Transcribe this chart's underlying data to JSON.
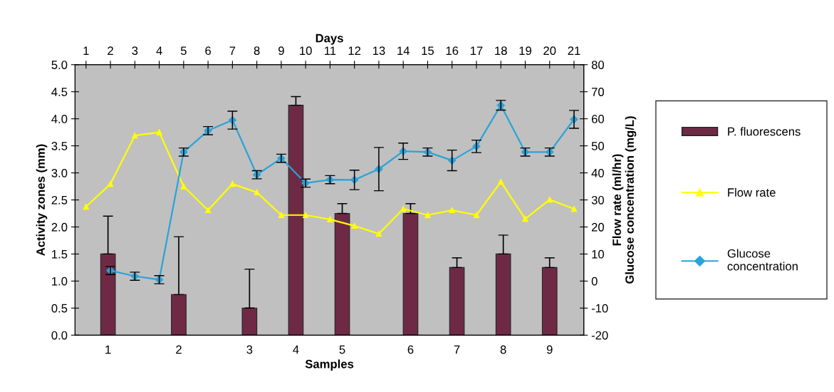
{
  "chart_data": {
    "type": "bar",
    "xlabel": "Days",
    "ylabel": "Activity zones (mm)",
    "y2label": "Flow rate (ml/hr)\nGlucose concentration (mg/L)",
    "xlim": [
      0.55,
      21.4
    ],
    "xticks": [
      1,
      2,
      3,
      4,
      5,
      6,
      7,
      8,
      9,
      10,
      11,
      12,
      13,
      14,
      15,
      16,
      17,
      18,
      19,
      20,
      21
    ],
    "ylim": [
      0,
      5
    ],
    "yticks": [
      {
        "value": 0,
        "label": "0.0"
      },
      {
        "value": 0.5,
        "label": "0.5"
      },
      {
        "value": 1,
        "label": "1.0"
      },
      {
        "value": 1.5,
        "label": "1.5"
      },
      {
        "value": 2,
        "label": "2.0"
      },
      {
        "value": 2.5,
        "label": "2.5"
      },
      {
        "value": 3,
        "label": "3.0"
      },
      {
        "value": 3.5,
        "label": "3.5"
      },
      {
        "value": 4,
        "label": "4.0"
      },
      {
        "value": 4.5,
        "label": "4.5"
      },
      {
        "value": 5,
        "label": "5.0"
      }
    ],
    "y2lim": [
      -20,
      80
    ],
    "y2ticks": [
      -20,
      -10,
      0,
      10,
      20,
      30,
      40,
      50,
      60,
      70,
      80
    ],
    "grid": false,
    "legend": "right",
    "annotations": [
      {
        "text": "1",
        "x": 1.9,
        "y": 0
      },
      {
        "text": "2",
        "x": 4.8,
        "y": 0
      },
      {
        "text": "3",
        "x": 7.7,
        "y": 0
      },
      {
        "text": "4",
        "x": 9.6,
        "y": 0
      },
      {
        "text": "5",
        "x": 11.5,
        "y": 0
      },
      {
        "text": "6",
        "x": 14.3,
        "y": 0
      },
      {
        "text": "7",
        "x": 16.2,
        "y": 0
      },
      {
        "text": "8",
        "x": 18.1,
        "y": 0
      },
      {
        "text": "9",
        "x": 20.0,
        "y": 0
      },
      "Samples"
    ],
    "series": [
      {
        "name": "P. fluorescens",
        "color": "#6e2a45",
        "x": [
          1.9,
          4.8,
          7.7,
          9.6,
          11.5,
          14.3,
          16.2,
          18.1,
          20.0
        ],
        "values": [
          1.5,
          0.75,
          0.5,
          4.25,
          2.25,
          2.25,
          1.25,
          1.5,
          1.25
        ],
        "errors": [
          [
            1.5,
            2.2
          ],
          [
            0.75,
            1.82
          ],
          [
            0.5,
            1.22
          ],
          [
            4.25,
            4.41
          ],
          [
            2.25,
            2.43
          ],
          [
            2.25,
            2.43
          ],
          [
            1.25,
            1.43
          ],
          [
            1.5,
            1.85
          ],
          [
            1.25,
            1.43
          ]
        ]
      },
      {
        "name": "Flow rate",
        "type": "line",
        "axis": "y2",
        "marker": "triangle",
        "color": "#ffff00",
        "x": [
          1,
          2,
          3,
          4,
          5,
          6,
          7,
          8,
          9,
          10,
          11,
          12,
          13,
          14,
          15,
          16,
          17,
          18,
          19,
          20,
          21
        ],
        "values": [
          27.5,
          35.9,
          53.8,
          55,
          35,
          26.2,
          35.9,
          32.8,
          24.4,
          24.4,
          22.8,
          20.4,
          17.5,
          26.7,
          24.4,
          26.2,
          24.4,
          36.7,
          23,
          30.1,
          26.7
        ]
      },
      {
        "name": "Glucose\nconcentration",
        "type": "line",
        "axis": "y2",
        "marker": "diamond",
        "color": "#2aa3d8",
        "x": [
          2,
          3,
          4,
          5,
          6,
          7,
          8,
          9,
          10,
          11,
          12,
          13,
          14,
          15,
          16,
          17,
          18,
          19,
          20,
          21
        ],
        "values": [
          3.9,
          1.8,
          0.5,
          47.7,
          55.6,
          59.5,
          39.3,
          45.4,
          36.2,
          37.5,
          37.4,
          41.4,
          48,
          47.7,
          44.6,
          49.8,
          65,
          47.7,
          47.7,
          59.8
        ],
        "errors": [
          1.5,
          1.5,
          1.5,
          1.5,
          1.5,
          3.3,
          1.5,
          1.5,
          1.5,
          1.5,
          3.6,
          8,
          3,
          1.5,
          3.8,
          2.3,
          1.8,
          1.5,
          1.5,
          3.3
        ]
      }
    ]
  }
}
